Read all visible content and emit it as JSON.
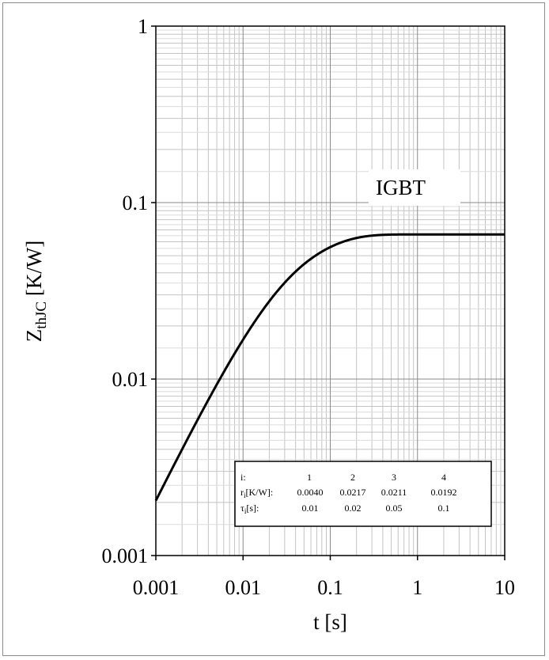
{
  "chart_data": {
    "type": "line",
    "x_scale": "log",
    "y_scale": "log",
    "xlim": [
      0.001,
      10
    ],
    "ylim": [
      0.001,
      1
    ],
    "x_ticks": [
      "0.001",
      "0.01",
      "0.1",
      "1",
      "10"
    ],
    "y_ticks": [
      "0.001",
      "0.01",
      "0.1",
      "1"
    ],
    "xlabel": "t [s]",
    "ylabel_main": "Z",
    "ylabel_sub": "thJC",
    "ylabel_unit": " [K/W]",
    "grid": true,
    "series": [
      {
        "name": "IGBT",
        "color": "#000000",
        "foster": {
          "r": [
            0.004,
            0.0217,
            0.0211,
            0.0192
          ],
          "tau": [
            0.01,
            0.02,
            0.05,
            0.1
          ]
        }
      }
    ],
    "annotation": "IGBT",
    "table": {
      "rows": [
        {
          "label_main": "i:",
          "label_sub": "",
          "label_suffix": "",
          "values": [
            "1",
            "2",
            "3",
            "4"
          ]
        },
        {
          "label_main": "r",
          "label_sub": "i",
          "label_suffix": "[K/W]:",
          "values": [
            "0.0040",
            "0.0217",
            "0.0211",
            "0.0192"
          ]
        },
        {
          "label_main": "τ",
          "label_sub": "i",
          "label_suffix": "[s]:",
          "values": [
            "0.01",
            "0.02",
            "0.05",
            "0.1"
          ]
        }
      ]
    }
  }
}
